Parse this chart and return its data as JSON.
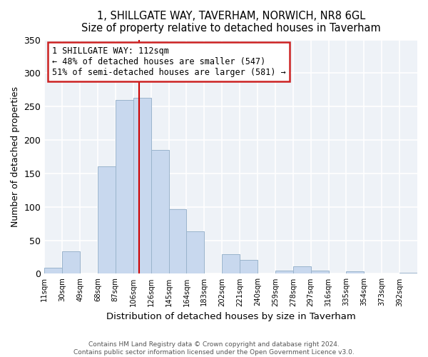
{
  "title": "1, SHILLGATE WAY, TAVERHAM, NORWICH, NR8 6GL",
  "subtitle": "Size of property relative to detached houses in Taverham",
  "xlabel": "Distribution of detached houses by size in Taverham",
  "ylabel": "Number of detached properties",
  "bar_color": "#c8d8ee",
  "bar_edgecolor": "#9ab4cc",
  "vline_x": 112,
  "vline_color": "#cc0000",
  "annotation_title": "1 SHILLGATE WAY: 112sqm",
  "annotation_line1": "← 48% of detached houses are smaller (547)",
  "annotation_line2": "51% of semi-detached houses are larger (581) →",
  "bin_edges": [
    11,
    30,
    49,
    68,
    87,
    106,
    125,
    144,
    163,
    182,
    201,
    220,
    239,
    258,
    277,
    296,
    315,
    334,
    353,
    372,
    391,
    410
  ],
  "bin_labels": [
    "11sqm",
    "30sqm",
    "49sqm",
    "68sqm",
    "87sqm",
    "106sqm",
    "126sqm",
    "145sqm",
    "164sqm",
    "183sqm",
    "202sqm",
    "221sqm",
    "240sqm",
    "259sqm",
    "278sqm",
    "297sqm",
    "316sqm",
    "335sqm",
    "354sqm",
    "373sqm",
    "392sqm"
  ],
  "counts": [
    9,
    34,
    0,
    161,
    260,
    263,
    185,
    97,
    63,
    0,
    29,
    21,
    0,
    5,
    11,
    5,
    0,
    4,
    0,
    0,
    2
  ],
  "ylim": [
    0,
    350
  ],
  "yticks": [
    0,
    50,
    100,
    150,
    200,
    250,
    300,
    350
  ],
  "footer1": "Contains HM Land Registry data © Crown copyright and database right 2024.",
  "footer2": "Contains public sector information licensed under the Open Government Licence v3.0.",
  "bg_color": "#eef2f7"
}
